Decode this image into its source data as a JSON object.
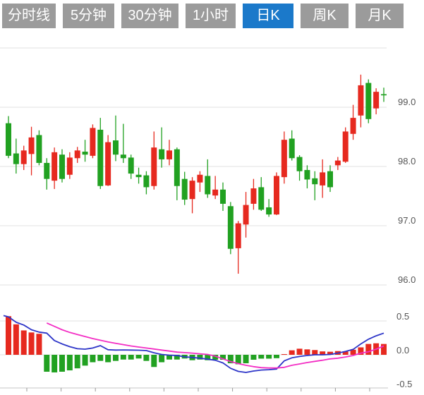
{
  "tabs": {
    "active_index": 4,
    "items": [
      {
        "label": "分时线"
      },
      {
        "label": "5分钟"
      },
      {
        "label": "30分钟"
      },
      {
        "label": "1小时"
      },
      {
        "label": "日K"
      },
      {
        "label": "周K"
      },
      {
        "label": "月K"
      }
    ]
  },
  "chart_data": {
    "type": "candlestick_with_macd",
    "title": "",
    "legend_position": "none",
    "grid": true,
    "price_axis": {
      "side": "right",
      "ticks": [
        {
          "label": "99.0",
          "value": 99.0
        },
        {
          "label": "98.0",
          "value": 98.0
        },
        {
          "label": "97.0",
          "value": 97.0
        },
        {
          "label": "96.0",
          "value": 96.0
        }
      ],
      "top_unlabeled_gridline_value": 100.0,
      "ylim": [
        95.7,
        100.0
      ]
    },
    "macd_axis": {
      "side": "right",
      "ticks": [
        {
          "label": "0.5",
          "value": 0.5
        },
        {
          "label": "0.0",
          "value": 0.0
        },
        {
          "label": "-0.5",
          "value": -0.5
        }
      ],
      "ylim": [
        -0.5,
        0.5
      ]
    },
    "candles_columns": [
      "open",
      "high",
      "low",
      "close"
    ],
    "candles": [
      [
        98.73,
        98.85,
        98.14,
        98.18
      ],
      [
        98.22,
        98.47,
        97.88,
        98.04
      ],
      [
        98.04,
        98.35,
        97.94,
        98.27
      ],
      [
        98.21,
        98.67,
        97.85,
        98.49
      ],
      [
        98.53,
        98.61,
        98.02,
        98.06
      ],
      [
        98.06,
        98.14,
        97.61,
        97.79
      ],
      [
        97.76,
        98.32,
        97.62,
        98.24
      ],
      [
        98.2,
        98.29,
        97.73,
        97.79
      ],
      [
        97.86,
        98.24,
        97.79,
        98.15
      ],
      [
        98.14,
        98.33,
        98.06,
        98.27
      ],
      [
        98.25,
        98.45,
        98.08,
        98.2
      ],
      [
        98.18,
        98.71,
        98.14,
        98.65
      ],
      [
        98.62,
        98.82,
        97.62,
        97.67
      ],
      [
        97.68,
        98.53,
        97.67,
        98.41
      ],
      [
        98.44,
        98.86,
        98.09,
        98.2
      ],
      [
        98.2,
        98.72,
        98.06,
        98.14
      ],
      [
        98.15,
        98.2,
        97.79,
        97.88
      ],
      [
        97.86,
        97.98,
        97.71,
        97.82
      ],
      [
        97.85,
        97.92,
        97.53,
        97.65
      ],
      [
        97.67,
        98.59,
        97.61,
        98.32
      ],
      [
        98.29,
        98.66,
        97.98,
        98.12
      ],
      [
        98.12,
        98.45,
        98.02,
        98.27
      ],
      [
        98.29,
        98.32,
        97.43,
        97.67
      ],
      [
        97.79,
        97.91,
        97.35,
        97.44
      ],
      [
        97.45,
        97.82,
        97.21,
        97.76
      ],
      [
        97.73,
        97.92,
        97.57,
        97.86
      ],
      [
        97.84,
        98.12,
        97.47,
        97.53
      ],
      [
        97.51,
        97.84,
        97.45,
        97.61
      ],
      [
        97.61,
        97.73,
        97.25,
        97.37
      ],
      [
        97.33,
        97.4,
        96.52,
        96.61
      ],
      [
        96.62,
        97.08,
        96.19,
        97.04
      ],
      [
        97.02,
        97.57,
        96.8,
        97.35
      ],
      [
        97.37,
        97.79,
        97.27,
        97.63
      ],
      [
        97.65,
        97.82,
        97.25,
        97.27
      ],
      [
        97.31,
        97.45,
        97.15,
        97.19
      ],
      [
        97.19,
        97.9,
        97.18,
        97.84
      ],
      [
        97.82,
        98.59,
        97.71,
        98.45
      ],
      [
        98.47,
        98.61,
        98.1,
        98.14
      ],
      [
        98.16,
        98.19,
        97.76,
        97.92
      ],
      [
        97.94,
        98.02,
        97.63,
        97.78
      ],
      [
        97.8,
        97.92,
        97.43,
        97.7
      ],
      [
        97.68,
        98.12,
        97.47,
        97.9
      ],
      [
        97.92,
        98.02,
        97.57,
        97.65
      ],
      [
        98.02,
        98.16,
        97.94,
        98.1
      ],
      [
        98.08,
        98.66,
        98.06,
        98.59
      ],
      [
        98.55,
        99.04,
        98.45,
        98.82
      ],
      [
        98.86,
        99.55,
        98.66,
        99.37
      ],
      [
        99.41,
        99.47,
        98.73,
        98.8
      ],
      [
        98.98,
        99.32,
        98.88,
        99.26
      ],
      [
        99.22,
        99.33,
        99.09,
        99.2
      ]
    ],
    "macd": {
      "histogram": [
        0.57,
        0.45,
        0.36,
        0.33,
        0.31,
        -0.25,
        -0.26,
        -0.25,
        -0.23,
        -0.2,
        -0.16,
        -0.11,
        -0.09,
        -0.11,
        -0.09,
        -0.07,
        -0.07,
        -0.055,
        -0.09,
        -0.18,
        -0.11,
        -0.07,
        -0.07,
        -0.055,
        -0.08,
        -0.07,
        -0.08,
        -0.073,
        -0.073,
        -0.125,
        -0.14,
        -0.125,
        -0.073,
        -0.057,
        -0.057,
        -0.05,
        0.01,
        0.066,
        0.09,
        0.08,
        0.07,
        0.05,
        0.045,
        0.055,
        0.05,
        0.075,
        0.11,
        0.16,
        0.17,
        0.16
      ],
      "dif_start_value": 0.58,
      "dif": [
        0.56,
        0.48,
        0.44,
        0.37,
        0.335,
        0.32,
        0.21,
        0.16,
        0.12,
        0.09,
        0.083,
        0.1,
        0.135,
        0.075,
        0.07,
        0.072,
        0.07,
        0.068,
        0.062,
        0.03,
        0.005,
        -0.005,
        -0.01,
        -0.03,
        -0.04,
        -0.05,
        -0.065,
        -0.08,
        -0.12,
        -0.2,
        -0.245,
        -0.26,
        -0.24,
        -0.225,
        -0.22,
        -0.21,
        -0.09,
        -0.045,
        -0.025,
        -0.01,
        0.0,
        0.0,
        0.005,
        0.025,
        0.05,
        0.08,
        0.16,
        0.23,
        0.28,
        0.32
      ],
      "dea": [
        null,
        null,
        null,
        null,
        null,
        0.47,
        0.42,
        0.37,
        0.33,
        0.3,
        0.27,
        0.24,
        0.215,
        0.19,
        0.17,
        0.15,
        0.13,
        0.115,
        0.1,
        0.085,
        0.07,
        0.055,
        0.04,
        0.032,
        0.025,
        0.015,
        0.005,
        -0.02,
        -0.06,
        -0.1,
        -0.13,
        -0.155,
        -0.175,
        -0.19,
        -0.195,
        -0.195,
        -0.185,
        -0.155,
        -0.135,
        -0.115,
        -0.097,
        -0.08,
        -0.06,
        -0.05,
        -0.032,
        -0.01,
        0.025,
        0.045,
        0.083,
        0.13
      ]
    },
    "colors": {
      "up_candle": "#e6291f",
      "down_candle": "#21a121",
      "dif_line": "#2d35c8",
      "dea_line": "#f32ec4",
      "gridline": "#e2e2e2",
      "axis_line": "#c4c4c4",
      "tick_mark": "#9a9a9a",
      "axis_label": "#555555",
      "tab_bg": "#9b9b9b",
      "tab_active_bg": "#1b79ca",
      "tab_text": "#ffffff"
    }
  }
}
